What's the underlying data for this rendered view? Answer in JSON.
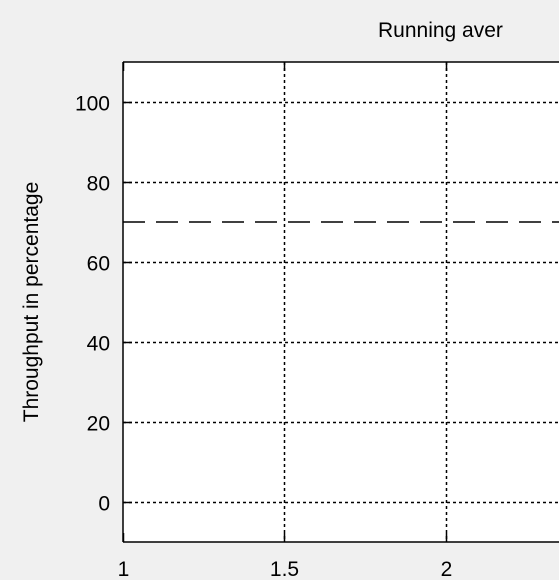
{
  "chart_data": {
    "type": "line",
    "title": "Running aver",
    "xlabel": "",
    "ylabel": "Throughput in percentage",
    "xlim": [
      1,
      2.35
    ],
    "ylim": [
      -10,
      110
    ],
    "xticks": [
      1,
      1.5,
      2
    ],
    "xtick_labels": [
      "1",
      "1.5",
      "2"
    ],
    "yticks": [
      0,
      20,
      40,
      60,
      80,
      100
    ],
    "ytick_labels": [
      "0",
      "20",
      "40",
      "60",
      "80",
      "100"
    ],
    "grid": true,
    "series": [
      {
        "style": "dashed",
        "color": "#000000",
        "x": [
          1,
          2.35
        ],
        "y": [
          70,
          70
        ]
      }
    ]
  }
}
